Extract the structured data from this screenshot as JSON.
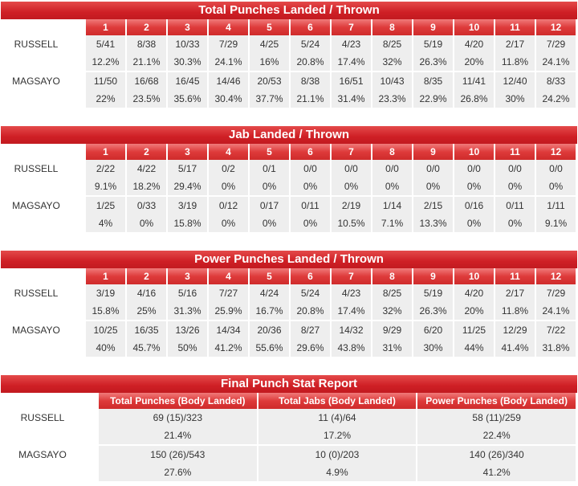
{
  "rounds": [
    "1",
    "2",
    "3",
    "4",
    "5",
    "6",
    "7",
    "8",
    "9",
    "10",
    "11",
    "12"
  ],
  "fighters": [
    "RUSSELL",
    "MAGSAYO"
  ],
  "tables": [
    {
      "title": "Total Punches Landed / Thrown",
      "rows": [
        {
          "fighter": "RUSSELL",
          "counts": [
            "5/41",
            "8/38",
            "10/33",
            "7/29",
            "4/25",
            "5/24",
            "4/23",
            "8/25",
            "5/19",
            "4/20",
            "2/17",
            "7/29"
          ],
          "pcts": [
            "12.2%",
            "21.1%",
            "30.3%",
            "24.1%",
            "16%",
            "20.8%",
            "17.4%",
            "32%",
            "26.3%",
            "20%",
            "11.8%",
            "24.1%"
          ]
        },
        {
          "fighter": "MAGSAYO",
          "counts": [
            "11/50",
            "16/68",
            "16/45",
            "14/46",
            "20/53",
            "8/38",
            "16/51",
            "10/43",
            "8/35",
            "11/41",
            "12/40",
            "8/33"
          ],
          "pcts": [
            "22%",
            "23.5%",
            "35.6%",
            "30.4%",
            "37.7%",
            "21.1%",
            "31.4%",
            "23.3%",
            "22.9%",
            "26.8%",
            "30%",
            "24.2%"
          ]
        }
      ]
    },
    {
      "title": "Jab Landed / Thrown",
      "rows": [
        {
          "fighter": "RUSSELL",
          "counts": [
            "2/22",
            "4/22",
            "5/17",
            "0/2",
            "0/1",
            "0/0",
            "0/0",
            "0/0",
            "0/0",
            "0/0",
            "0/0",
            "0/0"
          ],
          "pcts": [
            "9.1%",
            "18.2%",
            "29.4%",
            "0%",
            "0%",
            "0%",
            "0%",
            "0%",
            "0%",
            "0%",
            "0%",
            "0%"
          ]
        },
        {
          "fighter": "MAGSAYO",
          "counts": [
            "1/25",
            "0/33",
            "3/19",
            "0/12",
            "0/17",
            "0/11",
            "2/19",
            "1/14",
            "2/15",
            "0/16",
            "0/11",
            "1/11"
          ],
          "pcts": [
            "4%",
            "0%",
            "15.8%",
            "0%",
            "0%",
            "0%",
            "10.5%",
            "7.1%",
            "13.3%",
            "0%",
            "0%",
            "9.1%"
          ]
        }
      ]
    },
    {
      "title": "Power Punches Landed / Thrown",
      "rows": [
        {
          "fighter": "RUSSELL",
          "counts": [
            "3/19",
            "4/16",
            "5/16",
            "7/27",
            "4/24",
            "5/24",
            "4/23",
            "8/25",
            "5/19",
            "4/20",
            "2/17",
            "7/29"
          ],
          "pcts": [
            "15.8%",
            "25%",
            "31.3%",
            "25.9%",
            "16.7%",
            "20.8%",
            "17.4%",
            "32%",
            "26.3%",
            "20%",
            "11.8%",
            "24.1%"
          ]
        },
        {
          "fighter": "MAGSAYO",
          "counts": [
            "10/25",
            "16/35",
            "13/26",
            "14/34",
            "20/36",
            "8/27",
            "14/32",
            "9/29",
            "6/20",
            "11/25",
            "12/29",
            "7/22"
          ],
          "pcts": [
            "40%",
            "45.7%",
            "50%",
            "41.2%",
            "55.6%",
            "29.6%",
            "43.8%",
            "31%",
            "30%",
            "44%",
            "41.4%",
            "31.8%"
          ]
        }
      ]
    }
  ],
  "final": {
    "title": "Final Punch Stat Report",
    "headers": [
      "Total Punches (Body Landed)",
      "Total Jabs (Body Landed)",
      "Power Punches (Body Landed)"
    ],
    "rows": [
      {
        "fighter": "RUSSELL",
        "values": [
          "69 (15)/323",
          "11 (4)/64",
          "58 (11)/259"
        ],
        "pcts": [
          "21.4%",
          "17.2%",
          "22.4%"
        ]
      },
      {
        "fighter": "MAGSAYO",
        "values": [
          "150 (26)/543",
          "10 (0)/203",
          "140 (26)/340"
        ],
        "pcts": [
          "27.6%",
          "4.9%",
          "41.2%"
        ]
      }
    ]
  }
}
